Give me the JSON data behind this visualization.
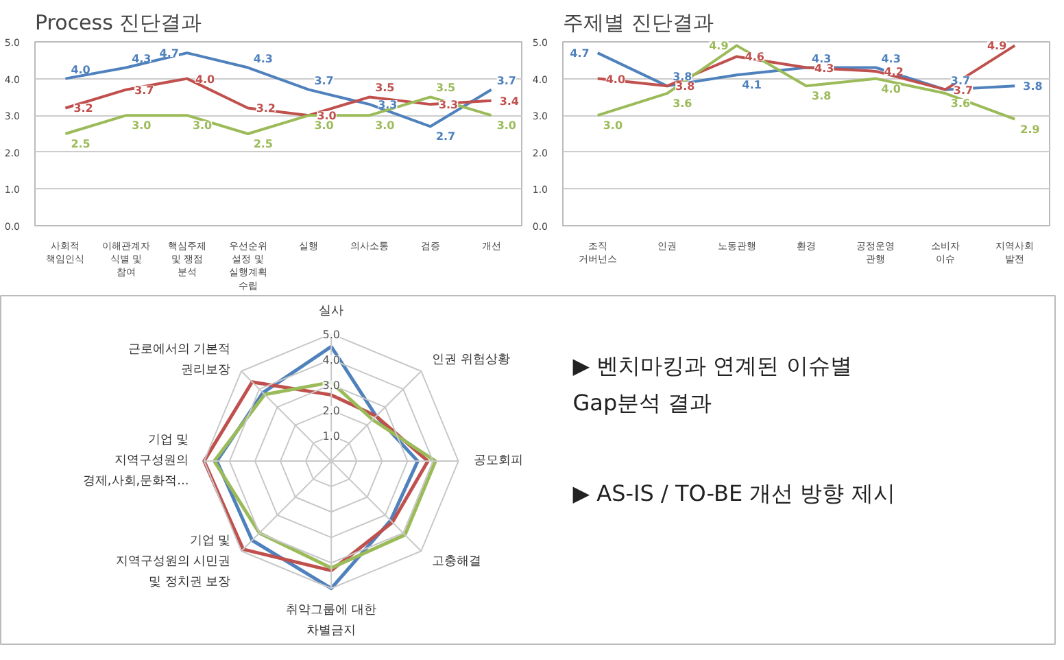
{
  "chart_data": [
    {
      "type": "line",
      "title": "Process 진단결과",
      "categories": [
        "사회적\n책임인식",
        "이해관계자\n식별 및\n참여",
        "핵심주제\n및 쟁점\n분석",
        "우선순위\n설정 및\n실행계획\n수립",
        "실행",
        "의사소통",
        "검증",
        "개선"
      ],
      "series": [
        {
          "color": "#4f81bd",
          "values": [
            4.0,
            4.3,
            4.7,
            4.3,
            3.7,
            3.3,
            2.7,
            3.7
          ],
          "value_labels": [
            "4.0",
            "4.3",
            "4.7",
            "4.3",
            "3.7",
            "3.3",
            "2.7",
            "3.7"
          ]
        },
        {
          "color": "#c0504d",
          "values": [
            3.2,
            3.7,
            4.0,
            3.2,
            3.0,
            3.5,
            3.3,
            3.4
          ],
          "value_labels": [
            "3.2",
            "3.7",
            "4.0",
            "3.2",
            "3.0",
            "3.5",
            "3.3",
            "3.4"
          ]
        },
        {
          "color": "#9bbb59",
          "values": [
            2.5,
            3.0,
            3.0,
            2.5,
            3.0,
            3.0,
            3.5,
            3.0
          ],
          "value_labels": [
            "2.5",
            "3.0",
            "3.0",
            "2.5",
            "3.0",
            "3.0",
            "3.5",
            "3.0"
          ]
        }
      ],
      "ylim": [
        0,
        5
      ],
      "yticks": [
        {
          "value": 0,
          "label": "0.0"
        },
        {
          "value": 1,
          "label": "1.0"
        },
        {
          "value": 2,
          "label": "2.0"
        },
        {
          "value": 3,
          "label": "3.0"
        },
        {
          "value": 4,
          "label": "4.0"
        },
        {
          "value": 5,
          "label": "5.0"
        }
      ],
      "grid": "y"
    },
    {
      "type": "line",
      "title": "주제별 진단결과",
      "categories": [
        "조직\n거버넌스",
        "인권",
        "노동관행",
        "환경",
        "공정운영\n관행",
        "소비자\n이슈",
        "지역사회\n발전"
      ],
      "series": [
        {
          "color": "#4f81bd",
          "values": [
            4.7,
            3.8,
            4.1,
            4.3,
            4.3,
            3.7,
            3.8
          ],
          "value_labels": [
            "4.7",
            "3.8",
            "4.1",
            "4.3",
            "4.3",
            "3.7",
            "3.8"
          ]
        },
        {
          "color": "#c0504d",
          "values": [
            4.0,
            3.8,
            4.6,
            4.3,
            4.2,
            3.7,
            4.9
          ],
          "value_labels": [
            "4.0",
            "3.8",
            "4.6",
            "4.3",
            "4.2",
            "3.7",
            "4.9"
          ]
        },
        {
          "color": "#9bbb59",
          "values": [
            3.0,
            3.6,
            4.9,
            3.8,
            4.0,
            3.6,
            2.9
          ],
          "value_labels": [
            "3.0",
            "3.6",
            "4.9",
            "3.8",
            "4.0",
            "3.6",
            "2.9"
          ]
        }
      ],
      "ylim": [
        0,
        5
      ],
      "yticks": [
        {
          "value": 0,
          "label": "0.0"
        },
        {
          "value": 1,
          "label": "1.0"
        },
        {
          "value": 2,
          "label": "2.0"
        },
        {
          "value": 3,
          "label": "3.0"
        },
        {
          "value": 4,
          "label": "4.0"
        },
        {
          "value": 5,
          "label": "5.0"
        }
      ],
      "grid": "y"
    },
    {
      "type": "radar",
      "categories": [
        "실사",
        "인권 위험상황",
        "공모회피",
        "고충해결",
        "취약그룹에 대한\n차별금지",
        "기업 및\n지역구성원의 시민권\n및 정치권 보장",
        "기업 및\n지역구성원의\n경제,사회,문화적...",
        "근로에서의 기본적\n권리보장"
      ],
      "series": [
        {
          "color": "#4f81bd",
          "values": [
            4.5,
            2.5,
            3.4,
            3.3,
            5.0,
            4.4,
            4.5,
            3.8
          ]
        },
        {
          "color": "#c0504d",
          "values": [
            2.6,
            2.5,
            3.8,
            3.4,
            4.3,
            4.9,
            5.0,
            4.4
          ]
        },
        {
          "color": "#9bbb59",
          "values": [
            3.1,
            2.3,
            4.1,
            4.1,
            4.2,
            4.0,
            4.6,
            3.7
          ]
        }
      ],
      "ylim": [
        0,
        5
      ],
      "yticks": [
        {
          "value": 1,
          "label": "1.0"
        },
        {
          "value": 2,
          "label": "2.0"
        },
        {
          "value": 3,
          "label": "3.0"
        },
        {
          "value": 4,
          "label": "4.0"
        },
        {
          "value": 5,
          "label": "5.0"
        }
      ],
      "annotations": [
        "▶ 벤치마킹과 연계된 이슈별\nGap분석 결과",
        "▶ AS-IS / TO-BE 개선 방향 제시"
      ]
    }
  ]
}
